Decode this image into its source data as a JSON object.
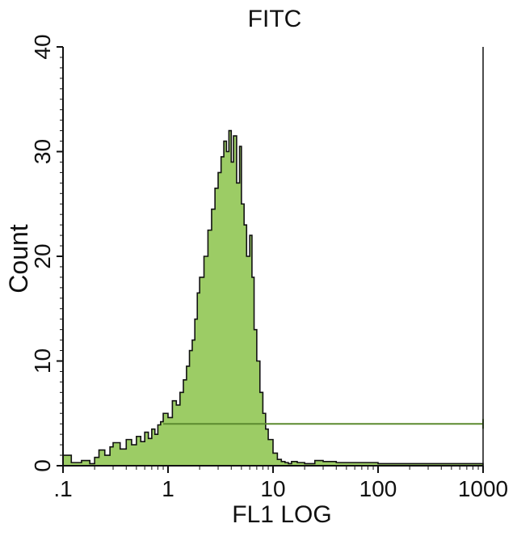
{
  "chart_data": {
    "type": "histogram",
    "title": "FITC",
    "xlabel": "FL1 LOG",
    "ylabel": "Count",
    "x_scale": "log",
    "xlim": [
      0.1,
      1000
    ],
    "ylim": [
      0,
      40
    ],
    "x_ticks": [
      ".1",
      "1",
      "10",
      "100",
      "1000"
    ],
    "y_ticks": [
      "0",
      "10",
      "20",
      "30",
      "40"
    ],
    "fill_color": "#9ccc65",
    "outline_color": "#111111",
    "marker_color": "#5b8a2f",
    "marker": {
      "x_start": 0.9,
      "x_end": 1000,
      "y": 4
    },
    "x": [
      0.1,
      0.12,
      0.15,
      0.18,
      0.2,
      0.22,
      0.25,
      0.28,
      0.3,
      0.35,
      0.4,
      0.45,
      0.5,
      0.55,
      0.6,
      0.65,
      0.7,
      0.75,
      0.8,
      0.85,
      0.9,
      1.0,
      1.1,
      1.2,
      1.3,
      1.4,
      1.5,
      1.6,
      1.7,
      1.8,
      1.9,
      2.0,
      2.2,
      2.4,
      2.6,
      2.8,
      3.0,
      3.2,
      3.4,
      3.6,
      3.8,
      4.0,
      4.2,
      4.5,
      4.8,
      5.0,
      5.3,
      5.6,
      6.0,
      6.3,
      6.6,
      7.0,
      7.5,
      8.0,
      8.5,
      9.0,
      10,
      11,
      12,
      13,
      14,
      15,
      17,
      20,
      25,
      30,
      40,
      50,
      70,
      100,
      200,
      500,
      1000
    ],
    "values": [
      1,
      0.3,
      0.5,
      0.2,
      0.8,
      1.5,
      1.0,
      1.8,
      2.2,
      1.6,
      2.5,
      2.0,
      2.8,
      2.3,
      3.2,
      2.6,
      3.5,
      3.0,
      3.9,
      4.2,
      5.0,
      4.6,
      6.2,
      5.8,
      7.0,
      8.2,
      9.5,
      11.0,
      12.0,
      14.0,
      16.5,
      18.0,
      20.0,
      22.5,
      24.5,
      26.5,
      28.0,
      29.5,
      31.0,
      30.0,
      32.0,
      29.0,
      31.5,
      27.0,
      30.5,
      25.0,
      23.0,
      20.0,
      22.0,
      18.0,
      13.0,
      10.0,
      7.0,
      5.0,
      3.5,
      2.5,
      1.2,
      0.6,
      0.4,
      0.3,
      0.2,
      0.4,
      0.3,
      0.2,
      0.5,
      0.4,
      0.3,
      0.3,
      0.3,
      0.2,
      0.2,
      0.2,
      0.2
    ]
  }
}
